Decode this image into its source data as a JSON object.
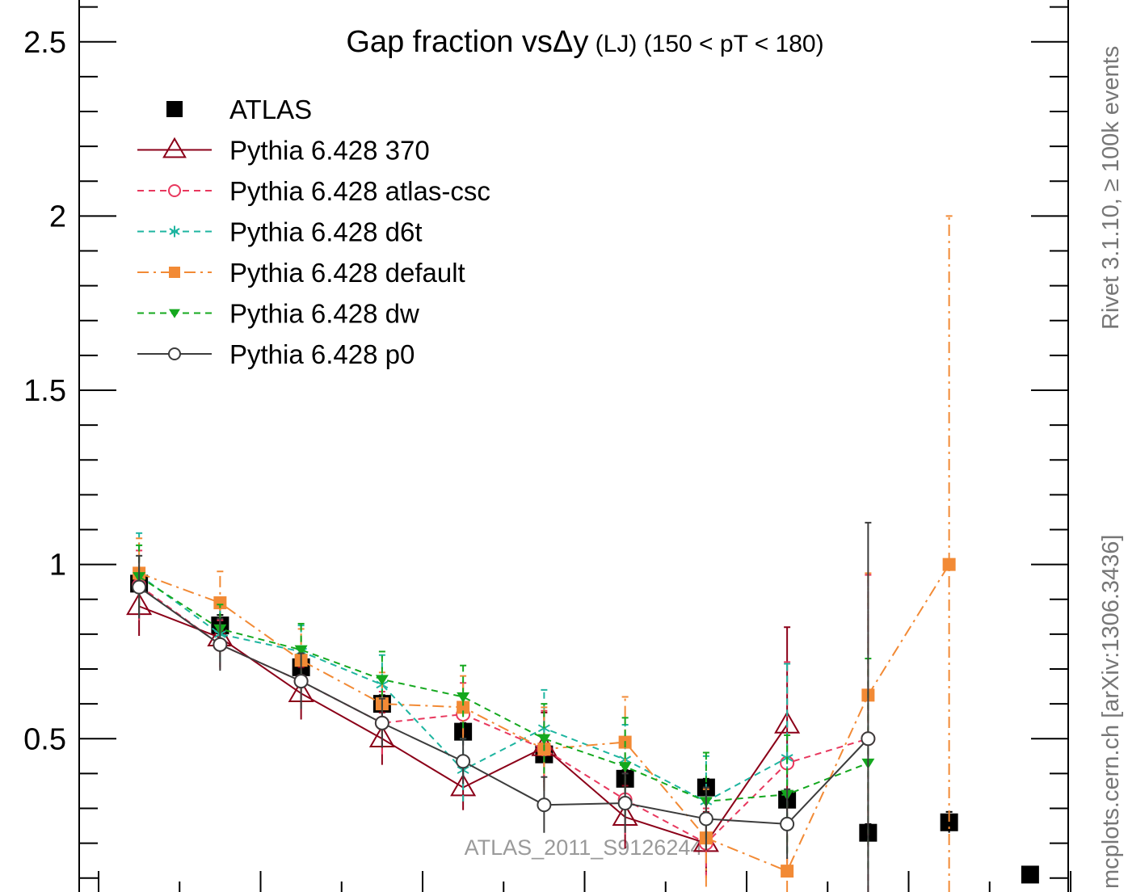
{
  "chart_data": {
    "type": "line",
    "title_main": "Gap fraction vs",
    "title_delta": "Δy",
    "title_small": " (LJ)",
    "title_range": " (150 < pT < 180)",
    "watermark": "ATLAS_2011_S9126244",
    "side_label_top": "Rivet 3.1.10, ≥ 100k events",
    "side_label_bottom": "mcplots.cern.ch [arXiv:1306.3436]",
    "ylim": [
      0.06,
      2.62
    ],
    "yticks": [
      {
        "value": 0.5,
        "label": "0.5"
      },
      {
        "value": 1,
        "label": "1"
      },
      {
        "value": 1.5,
        "label": "1.5"
      },
      {
        "value": 2,
        "label": "2"
      },
      {
        "value": 2.5,
        "label": "2.5"
      }
    ],
    "x": [
      0.25,
      0.75,
      1.25,
      1.75,
      2.25,
      2.75,
      3.25,
      3.75,
      4.25,
      4.75,
      5.25,
      5.75
    ],
    "legend_position": "top-left",
    "series": [
      {
        "name": "ATLAS",
        "color": "#000000",
        "marker": "square-filled",
        "line": "none",
        "values": [
          0.945,
          0.825,
          0.705,
          0.6,
          0.52,
          0.455,
          0.385,
          0.36,
          0.325,
          0.23,
          0.26,
          0.11
        ],
        "errors": [
          0.04,
          0.03,
          0.025,
          0.025,
          0.025,
          0.025,
          0.025,
          0.025,
          0.025,
          0.025,
          0.03,
          0.02
        ]
      },
      {
        "name": "Pythia 6.428 370",
        "color": "#8b0018",
        "marker": "triangle-open",
        "line": "solid",
        "values": [
          0.88,
          0.79,
          0.63,
          0.5,
          0.36,
          0.475,
          0.275,
          0.2,
          0.54,
          null,
          null,
          null
        ],
        "errors": [
          0.085,
          0.085,
          0.075,
          0.075,
          0.065,
          0.1,
          0.09,
          0.09,
          0.28,
          null,
          null,
          null
        ]
      },
      {
        "name": "Pythia 6.428 atlas-csc",
        "color": "#e8385e",
        "marker": "circle-open",
        "line": "dashed",
        "values": [
          0.94,
          0.77,
          0.665,
          0.545,
          0.57,
          0.47,
          0.325,
          0.2,
          0.43,
          0.5,
          null,
          null
        ],
        "errors": [
          0.1,
          0.07,
          0.08,
          0.09,
          0.09,
          0.11,
          0.1,
          0.1,
          0.29,
          0.47,
          null,
          null
        ]
      },
      {
        "name": "Pythia 6.428 d6t",
        "color": "#1eb5a0",
        "marker": "star",
        "line": "dashed",
        "values": [
          0.97,
          0.8,
          0.75,
          0.655,
          0.41,
          0.53,
          0.44,
          0.32,
          0.445,
          null,
          null,
          null
        ],
        "errors": [
          0.12,
          0.08,
          0.075,
          0.085,
          0.09,
          0.11,
          0.1,
          0.13,
          0.27,
          null,
          null,
          null
        ]
      },
      {
        "name": "Pythia 6.428 default",
        "color": "#f28a35",
        "marker": "square-filled",
        "line": "dashdot",
        "values": [
          0.975,
          0.89,
          0.725,
          0.6,
          0.59,
          0.47,
          0.49,
          0.215,
          0.12,
          0.625,
          1.0,
          null
        ],
        "errors": [
          0.1,
          0.09,
          0.09,
          0.09,
          0.09,
          0.12,
          0.13,
          0.14,
          0.12,
          0.35,
          1.0,
          null
        ]
      },
      {
        "name": "Pythia 6.428 dw",
        "color": "#14a81e",
        "marker": "triangle-down-filled",
        "line": "dashed",
        "values": [
          0.965,
          0.815,
          0.755,
          0.67,
          0.62,
          0.5,
          0.42,
          0.32,
          0.34,
          0.43,
          null,
          null
        ],
        "errors": [
          0.09,
          0.07,
          0.075,
          0.08,
          0.09,
          0.1,
          0.14,
          0.14,
          0.17,
          0.3,
          null,
          null
        ]
      },
      {
        "name": "Pythia 6.428 p0",
        "color": "#3c3c3c",
        "marker": "circle-open",
        "line": "solid",
        "values": [
          0.935,
          0.77,
          0.665,
          0.545,
          0.435,
          0.31,
          0.315,
          0.27,
          0.255,
          0.5,
          null,
          null
        ],
        "errors": [
          0.09,
          0.075,
          0.08,
          0.07,
          0.065,
          0.08,
          0.085,
          0.09,
          0.1,
          0.62,
          null,
          null
        ]
      }
    ]
  }
}
